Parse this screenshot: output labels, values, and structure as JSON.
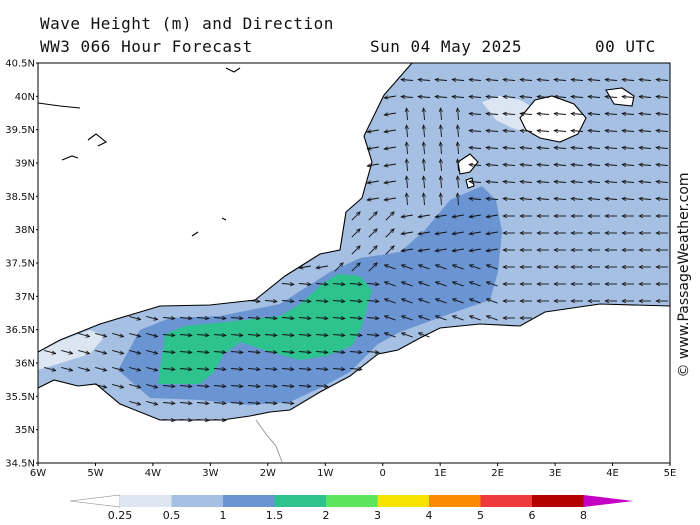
{
  "header": {
    "title_line1": "Wave Height (m) and Direction",
    "title_line2": "WW3 066 Hour Forecast",
    "date": "Sun 04 May 2025",
    "time": "00 UTC"
  },
  "copyright": "© www.PassageWeather.com",
  "map": {
    "lon_range": [
      -6,
      5
    ],
    "lat_range": [
      34.5,
      40.5
    ],
    "lat_ticks": [
      "40.5N",
      "40N",
      "39.5N",
      "39N",
      "38.5N",
      "38N",
      "37.5N",
      "37N",
      "36.5N",
      "36N",
      "35.5N",
      "35N",
      "34.5N"
    ],
    "lon_ticks": [
      "6W",
      "5W",
      "4W",
      "3W",
      "2W",
      "1W",
      "0",
      "1E",
      "2E",
      "3E",
      "4E",
      "5E"
    ]
  },
  "colors": {
    "land": "#ffffff",
    "sea_base": "#a6c0e3",
    "light": "#dce6f2",
    "mid": "#6b95d2",
    "green": "#2ec28f",
    "coast": "#000000"
  },
  "legend": {
    "labels": [
      "0.25",
      "0.5",
      "1",
      "1.5",
      "2",
      "3",
      "4",
      "5",
      "6",
      "8"
    ],
    "colors": [
      "#dde6f1",
      "#a6c0e3",
      "#6b95d2",
      "#2ec28f",
      "#5be35b",
      "#f7e300",
      "#f98c00",
      "#ee3a3a",
      "#b50000",
      "#c400c4"
    ]
  }
}
